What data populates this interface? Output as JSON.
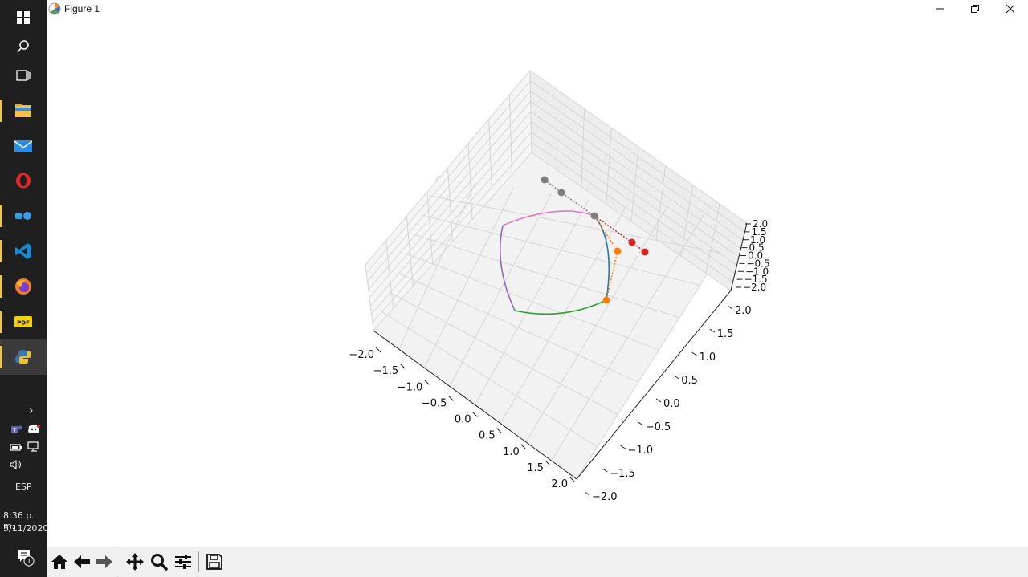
{
  "window": {
    "title": "Figure 1"
  },
  "taskbar": {
    "items": [
      {
        "name": "windows-start-icon"
      },
      {
        "name": "search-icon"
      },
      {
        "name": "task-view-icon"
      },
      {
        "name": "file-explorer-icon"
      },
      {
        "name": "mail-icon"
      },
      {
        "name": "opera-icon"
      },
      {
        "name": "app-icon"
      },
      {
        "name": "vscode-icon"
      },
      {
        "name": "firefox-icon"
      },
      {
        "name": "pdf-icon"
      },
      {
        "name": "python-icon"
      }
    ],
    "language": "ESP",
    "time": "8:36 p. m.",
    "date": "5/11/2020",
    "notification_count": "1"
  },
  "plot": {
    "x_ticks": [
      "−2.0",
      "−1.5",
      "−1.0",
      "−0.5",
      "0.0",
      "0.5",
      "1.0",
      "1.5",
      "2.0"
    ],
    "y_ticks": [
      "−2.0",
      "−1.5",
      "−1.0",
      "−0.5",
      "0.0",
      "0.5",
      "1.0",
      "1.5",
      "2.0"
    ],
    "z_ticks": [
      "−2.0",
      "−1.5",
      "−1.0",
      "−0.5",
      "0.0",
      "0.5",
      "1.0",
      "1.5",
      "2.0"
    ],
    "colors": {
      "blue": "#1f77b4",
      "orange": "#ff7f0e",
      "green": "#2ca02c",
      "red": "#d62728",
      "purple": "#9467bd",
      "pink": "#e377c2",
      "gray": "#7f7f7f"
    }
  },
  "toolbar": {
    "buttons": [
      "home-icon",
      "back-icon",
      "forward-icon",
      "pan-icon",
      "zoom-icon",
      "configure-subplots-icon",
      "save-icon"
    ]
  }
}
